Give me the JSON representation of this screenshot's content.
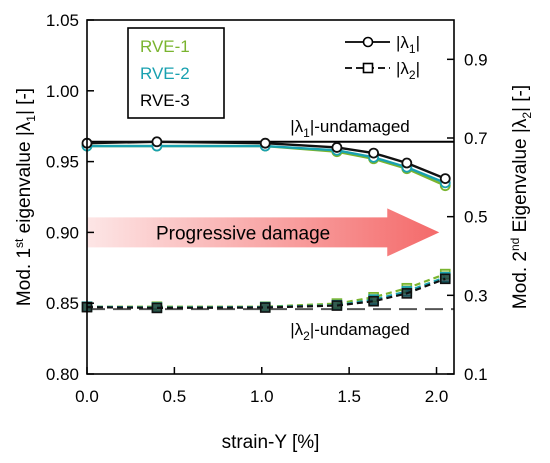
{
  "chart_data": {
    "type": "line",
    "xlabel": "strain-Y [%]",
    "ylabel_left": {
      "before": "Mod. 1",
      "sup": "st",
      "after": " eigenvalue  |λ",
      "sub": "1",
      "end": "|  [-]"
    },
    "ylabel_right": {
      "before": "Mod. 2",
      "sup": "nd",
      "after": " Eigenvalue  |λ",
      "sub": "2",
      "end": "|  [-]"
    },
    "xlim": [
      0.0,
      2.1
    ],
    "ylim_left": [
      0.8,
      1.05
    ],
    "ylim_right": [
      0.1,
      1.0
    ],
    "x_ticks": [
      0.0,
      0.5,
      1.0,
      1.5,
      2.0
    ],
    "x_tick_labels": [
      "0.0",
      "0.5",
      "1.0",
      "1.5",
      "2.0"
    ],
    "y_left_ticks": [
      0.8,
      0.85,
      0.9,
      0.95,
      1.0,
      1.05
    ],
    "y_left_tick_labels": [
      "0.80",
      "0.85",
      "0.90",
      "0.95",
      "1.00",
      "1.05"
    ],
    "y_right_ticks": [
      0.1,
      0.3,
      0.5,
      0.7,
      0.9
    ],
    "y_right_tick_labels": [
      "0.1",
      "0.3",
      "0.5",
      "0.7",
      "0.9"
    ],
    "grid": false,
    "x": [
      0.0,
      0.4,
      1.02,
      1.43,
      1.64,
      1.83,
      2.05
    ],
    "series_lambda1": [
      {
        "name": "RVE-1",
        "color": "#7ab42f",
        "values": [
          0.961,
          0.961,
          0.961,
          0.957,
          0.952,
          0.945,
          0.933
        ]
      },
      {
        "name": "RVE-2",
        "color": "#19a1b0",
        "values": [
          0.961,
          0.961,
          0.961,
          0.958,
          0.953,
          0.946,
          0.935
        ]
      },
      {
        "name": "RVE-3",
        "color": "#111111",
        "values": [
          0.963,
          0.964,
          0.963,
          0.96,
          0.956,
          0.949,
          0.938
        ]
      }
    ],
    "series_lambda2": [
      {
        "name": "RVE-1",
        "color": "#7ab42f",
        "values": [
          0.271,
          0.271,
          0.271,
          0.279,
          0.295,
          0.318,
          0.354
        ]
      },
      {
        "name": "RVE-2",
        "color": "#19a1b0",
        "values": [
          0.271,
          0.269,
          0.27,
          0.275,
          0.289,
          0.31,
          0.346
        ]
      },
      {
        "name": "RVE-3",
        "color": "#111111",
        "values": [
          0.27,
          0.268,
          0.269,
          0.274,
          0.285,
          0.305,
          0.342
        ]
      }
    ],
    "undamaged": {
      "lambda1_left_value": 0.964,
      "lambda2_right_value": 0.265,
      "lambda1_label": {
        "before": "|λ",
        "sub": "1",
        "after": "|-undamaged"
      },
      "lambda2_label": {
        "before": "|λ",
        "sub": "2",
        "after": "|-undamaged"
      }
    },
    "legend_rve": {
      "placement": "top-left",
      "entries": [
        {
          "label": "RVE-1",
          "color": "#7ab42f"
        },
        {
          "label": "RVE-2",
          "color": "#19a1b0"
        },
        {
          "label": "RVE-3",
          "color": "#000000"
        }
      ]
    },
    "legend_markers": {
      "placement": "top-right",
      "entries": [
        {
          "marker": "circle",
          "line": "solid",
          "before": "|λ",
          "sub": "1",
          "after": "|"
        },
        {
          "marker": "square",
          "line": "dashed",
          "before": "|λ",
          "sub": "2",
          "after": "|"
        }
      ]
    },
    "annotation_arrow": {
      "text": "Progressive damage",
      "from_x": 0.0,
      "to_x": 2.05,
      "level_left": 0.9
    }
  }
}
